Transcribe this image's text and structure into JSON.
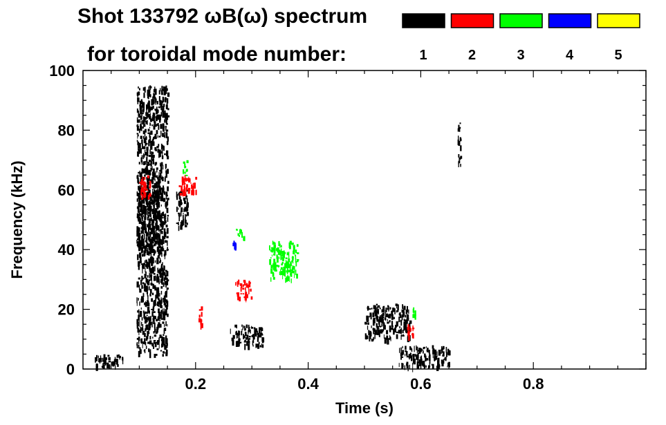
{
  "chart_data": {
    "type": "heatmap",
    "title": "Shot 133792 ωB(ω) spectrum",
    "subtitle": "for toroidal mode number:",
    "xlabel": "Time (s)",
    "ylabel": "Frequency (kHz)",
    "xlim": [
      0.0,
      1.0
    ],
    "ylim": [
      0,
      100
    ],
    "x_ticks": [
      0.2,
      0.4,
      0.6,
      0.8
    ],
    "x_tick_labels": [
      "0.2",
      "0.4",
      "0.6",
      "0.8"
    ],
    "y_ticks": [
      0,
      20,
      40,
      60,
      80,
      100
    ],
    "y_tick_labels": [
      "0",
      "20",
      "40",
      "60",
      "80",
      "100"
    ],
    "legend": [
      {
        "label": "1",
        "color": "#000000"
      },
      {
        "label": "2",
        "color": "#ff0000"
      },
      {
        "label": "3",
        "color": "#00ff00"
      },
      {
        "label": "4",
        "color": "#0000ff"
      },
      {
        "label": "5",
        "color": "#ffff00"
      }
    ],
    "series": [
      {
        "mode": "1",
        "color": "#000000",
        "regions": [
          {
            "t": [
              0.095,
              0.14
            ],
            "f": [
              40,
              62
            ]
          },
          {
            "t": [
              0.095,
              0.15
            ],
            "f": [
              5,
              95
            ]
          },
          {
            "t": [
              0.165,
              0.185
            ],
            "f": [
              48,
              60
            ]
          },
          {
            "t": [
              0.26,
              0.32
            ],
            "f": [
              8,
              15
            ]
          },
          {
            "t": [
              0.5,
              0.58
            ],
            "f": [
              10,
              22
            ]
          },
          {
            "t": [
              0.56,
              0.65
            ],
            "f": [
              1,
              8
            ]
          },
          {
            "t": [
              0.665,
              0.67
            ],
            "f": [
              68,
              84
            ]
          },
          {
            "t": [
              0.02,
              0.07
            ],
            "f": [
              1,
              5
            ]
          }
        ]
      },
      {
        "mode": "2",
        "color": "#ff0000",
        "regions": [
          {
            "t": [
              0.1,
              0.12
            ],
            "f": [
              58,
              65
            ]
          },
          {
            "t": [
              0.17,
              0.2
            ],
            "f": [
              59,
              65
            ]
          },
          {
            "t": [
              0.205,
              0.21
            ],
            "f": [
              12,
              21
            ]
          },
          {
            "t": [
              0.27,
              0.3
            ],
            "f": [
              24,
              30
            ]
          },
          {
            "t": [
              0.575,
              0.59
            ],
            "f": [
              11,
              16
            ]
          }
        ]
      },
      {
        "mode": "3",
        "color": "#00ff00",
        "regions": [
          {
            "t": [
              0.175,
              0.185
            ],
            "f": [
              65,
              70
            ]
          },
          {
            "t": [
              0.27,
              0.285
            ],
            "f": [
              44,
              47
            ]
          },
          {
            "t": [
              0.33,
              0.38
            ],
            "f": [
              30,
              43
            ]
          },
          {
            "t": [
              0.585,
              0.59
            ],
            "f": [
              18,
              21
            ]
          }
        ]
      },
      {
        "mode": "4",
        "color": "#0000ff",
        "regions": [
          {
            "t": [
              0.265,
              0.27
            ],
            "f": [
              41,
              43
            ]
          }
        ]
      },
      {
        "mode": "5",
        "color": "#ffff00",
        "regions": []
      }
    ]
  }
}
